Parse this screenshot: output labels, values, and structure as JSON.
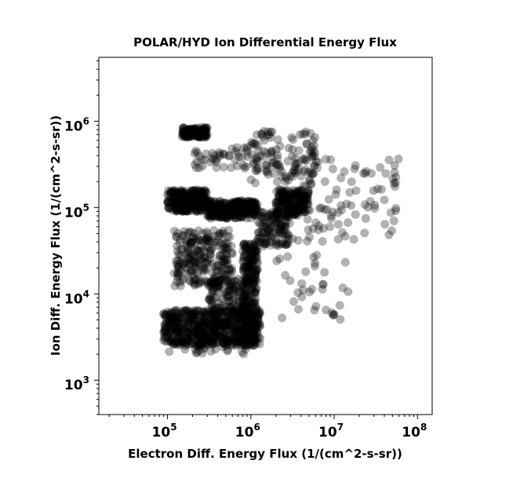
{
  "chart_data": {
    "type": "scatter",
    "title": "POLAR/HYD  Ion Differential Energy Flux",
    "xlabel": "Electron Diff. Energy Flux (1/(cm^2-s-sr))",
    "ylabel": "Ion Diff. Energy Flux (1/(cm^2-s-sr))",
    "x_scale": "log",
    "y_scale": "log",
    "xlim": [
      15000,
      150000000
    ],
    "ylim": [
      400,
      5500000
    ],
    "grid": false,
    "x_ticks": [
      {
        "base": "10",
        "exp": "5",
        "value": 100000
      },
      {
        "base": "10",
        "exp": "6",
        "value": 1000000
      },
      {
        "base": "10",
        "exp": "7",
        "value": 10000000
      },
      {
        "base": "10",
        "exp": "8",
        "value": 100000000
      }
    ],
    "y_ticks": [
      {
        "base": "10",
        "exp": "3",
        "value": 1000
      },
      {
        "base": "10",
        "exp": "4",
        "value": 10000
      },
      {
        "base": "10",
        "exp": "5",
        "value": 100000
      },
      {
        "base": "10",
        "exp": "6",
        "value": 1000000
      }
    ],
    "marker_color": "#000000",
    "marker_alpha": 0.3,
    "clusters": [
      {
        "x": [
          150000,
          300000
        ],
        "y": [
          650000,
          850000
        ],
        "n": 140
      },
      {
        "x": [
          200000,
          1000000
        ],
        "y": [
          280000,
          500000
        ],
        "n": 45
      },
      {
        "x": [
          1000000,
          6000000
        ],
        "y": [
          180000,
          800000
        ],
        "n": 110
      },
      {
        "x": [
          100000,
          300000
        ],
        "y": [
          90000,
          160000
        ],
        "n": 260
      },
      {
        "x": [
          300000,
          1200000
        ],
        "y": [
          75000,
          120000
        ],
        "n": 260
      },
      {
        "x": [
          2000000,
          5000000
        ],
        "y": [
          80000,
          160000
        ],
        "n": 180
      },
      {
        "x": [
          1200000,
          3000000
        ],
        "y": [
          35000,
          90000
        ],
        "n": 120
      },
      {
        "x": [
          120000,
          600000
        ],
        "y": [
          12000,
          55000
        ],
        "n": 240
      },
      {
        "x": [
          300000,
          900000
        ],
        "y": [
          6000,
          15000
        ],
        "n": 130
      },
      {
        "x": [
          800000,
          1200000
        ],
        "y": [
          3500,
          40000
        ],
        "n": 220
      },
      {
        "x": [
          90000,
          1300000
        ],
        "y": [
          2500,
          6500
        ],
        "n": 620
      },
      {
        "x": [
          100000,
          1000000
        ],
        "y": [
          2000,
          4000
        ],
        "n": 60
      },
      {
        "x": [
          2000000,
          60000000
        ],
        "y": [
          40000,
          400000
        ],
        "n": 110
      },
      {
        "x": [
          2000000,
          15000000
        ],
        "y": [
          5000,
          30000
        ],
        "n": 35
      }
    ]
  }
}
